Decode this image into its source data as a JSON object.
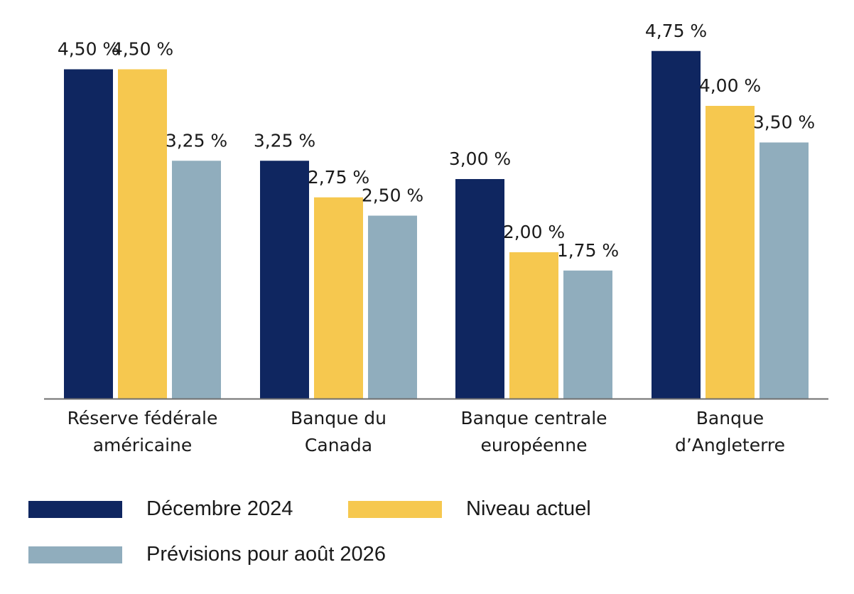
{
  "chart_data": {
    "type": "bar",
    "title": "",
    "xlabel": "",
    "ylabel": "",
    "ylim": [
      0,
      5.2
    ],
    "grid": false,
    "categories": [
      [
        "Réserve fédérale",
        "américaine"
      ],
      [
        "Banque du",
        "Canada"
      ],
      [
        "Banque centrale",
        "européenne"
      ],
      [
        "Banque",
        "d’Angleterre"
      ]
    ],
    "series": [
      {
        "name": "Décembre 2024",
        "color": "#0f2660",
        "values": [
          4.5,
          3.25,
          3.0,
          4.75
        ],
        "labels": [
          "4,50 %",
          "3,25 %",
          "3,00 %",
          "4,75 %"
        ]
      },
      {
        "name": "Niveau actuel",
        "color": "#f6c84f",
        "values": [
          4.5,
          2.75,
          2.0,
          4.0
        ],
        "labels": [
          "4,50 %",
          "2,75 %",
          "2,00 %",
          "4,00 %"
        ]
      },
      {
        "name": "Prévisions pour août 2026",
        "color": "#90adbd",
        "values": [
          3.25,
          2.5,
          1.75,
          3.5
        ],
        "labels": [
          "3,25 %",
          "2,50 %",
          "1,75 %",
          "3,50 %"
        ]
      }
    ],
    "legend_position": "bottom-left"
  }
}
